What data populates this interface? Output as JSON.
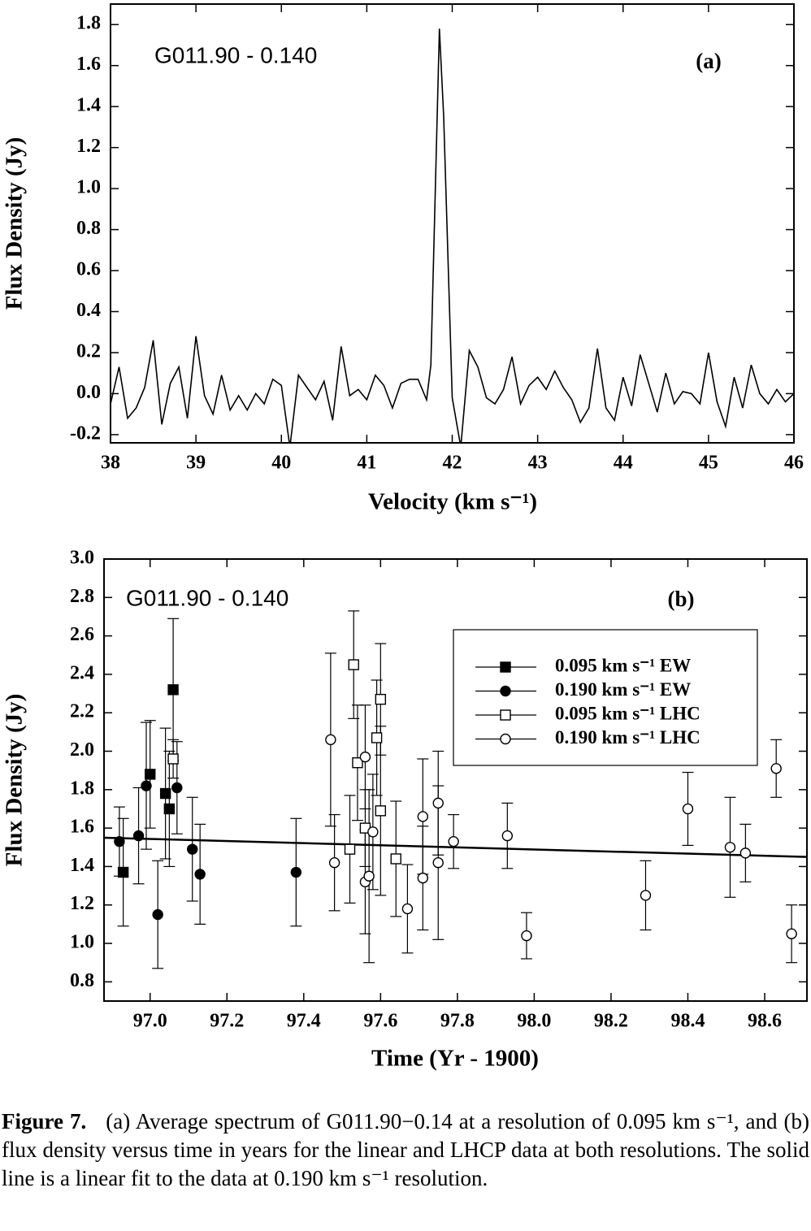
{
  "chart_data": [
    {
      "type": "line",
      "color": "#000000",
      "xlabel": "Velocity (km s⁻¹)",
      "ylabel": "Flux Density (Jy)",
      "annotations": [
        "G011.90 - 0.140",
        "(a)"
      ],
      "x": [
        38,
        38.1,
        38.2,
        38.3,
        38.4,
        38.5,
        38.6,
        38.7,
        38.8,
        38.9,
        39,
        39.1,
        39.2,
        39.3,
        39.4,
        39.5,
        39.6,
        39.7,
        39.8,
        39.9,
        40,
        40.1,
        40.2,
        40.3,
        40.4,
        40.5,
        40.6,
        40.7,
        40.8,
        40.9,
        41,
        41.1,
        41.2,
        41.3,
        41.4,
        41.5,
        41.6,
        41.7,
        41.75,
        41.85,
        41.9,
        42,
        42.1,
        42.2,
        42.3,
        42.4,
        42.5,
        42.6,
        42.7,
        42.8,
        42.9,
        43,
        43.1,
        43.2,
        43.3,
        43.4,
        43.5,
        43.6,
        43.7,
        43.8,
        43.9,
        44,
        44.1,
        44.2,
        44.3,
        44.4,
        44.5,
        44.6,
        44.7,
        44.8,
        44.9,
        45,
        45.1,
        45.2,
        45.3,
        45.4,
        45.5,
        45.6,
        45.7,
        45.8,
        45.9,
        46
      ],
      "values": [
        -0.05,
        0.13,
        -0.12,
        -0.07,
        0.03,
        0.26,
        -0.15,
        0.05,
        0.13,
        -0.12,
        0.28,
        -0.01,
        -0.1,
        0.09,
        -0.08,
        -0.01,
        -0.08,
        0.0,
        -0.05,
        0.07,
        0.04,
        -0.26,
        0.09,
        0.03,
        -0.03,
        0.06,
        -0.13,
        0.23,
        -0.01,
        0.02,
        -0.03,
        0.09,
        0.04,
        -0.07,
        0.05,
        0.07,
        0.07,
        -0.03,
        0.14,
        1.78,
        1.35,
        -0.02,
        -0.26,
        0.21,
        0.13,
        -0.02,
        -0.05,
        0.02,
        0.18,
        -0.05,
        0.04,
        0.08,
        0.02,
        0.11,
        0.03,
        -0.03,
        -0.14,
        -0.07,
        0.22,
        -0.07,
        -0.13,
        0.08,
        -0.06,
        0.19,
        0.05,
        -0.09,
        0.1,
        -0.05,
        0.01,
        0.0,
        -0.05,
        0.2,
        -0.04,
        -0.16,
        0.08,
        -0.07,
        0.14,
        0.0,
        -0.05,
        0.02,
        -0.04,
        0.0
      ],
      "xlim": [
        38,
        46
      ],
      "xticks": [
        38,
        39,
        40,
        41,
        42,
        43,
        44,
        45,
        46
      ],
      "ylim": [
        -0.24,
        1.9
      ],
      "yticks": [
        -0.2,
        {
          "value": 0,
          "label": "0.0"
        },
        0.2,
        0.4,
        0.6,
        0.8,
        {
          "value": 1,
          "label": "1.0"
        },
        1.2,
        1.4,
        1.6,
        1.8
      ]
    },
    {
      "type": "scatter",
      "xlabel": "Time (Yr - 1900)",
      "ylabel": "Flux Density (Jy)",
      "annotations": [
        "G011.90 - 0.140",
        "(b)"
      ],
      "series": [
        {
          "name": "0.095 km s⁻¹ EW",
          "color": "#000000",
          "marker": "square",
          "filled": true,
          "x": [
            96.93,
            97.0,
            97.04,
            97.05,
            97.06
          ],
          "values": [
            1.37,
            1.88,
            1.78,
            1.7,
            2.32
          ],
          "errors": [
            0.28,
            0.28,
            0.34,
            0.3,
            0.37
          ]
        },
        {
          "name": "0.190 km s⁻¹ EW",
          "color": "#000000",
          "marker": "circle",
          "filled": true,
          "x": [
            96.92,
            96.97,
            96.99,
            97.02,
            97.07,
            97.11,
            97.13,
            97.38
          ],
          "values": [
            1.53,
            1.56,
            1.82,
            1.15,
            1.81,
            1.49,
            1.36,
            1.37
          ],
          "errors": [
            0.18,
            0.25,
            0.33,
            0.28,
            0.24,
            0.27,
            0.26,
            0.28
          ]
        },
        {
          "name": "0.095 km s⁻¹ LHC",
          "color": "#000000",
          "marker": "square",
          "filled": false,
          "x": [
            97.06,
            97.52,
            97.53,
            97.54,
            97.56,
            97.59,
            97.6,
            97.6,
            97.64
          ],
          "values": [
            1.96,
            1.49,
            2.45,
            1.94,
            1.6,
            2.07,
            2.27,
            1.69,
            1.44
          ],
          "errors": [
            0.1,
            0.28,
            0.28,
            0.3,
            0.2,
            0.3,
            0.29,
            0.44,
            0.3
          ]
        },
        {
          "name": "0.190 km s⁻¹ LHC",
          "color": "#000000",
          "marker": "circle",
          "filled": false,
          "x": [
            97.47,
            97.48,
            97.56,
            97.56,
            97.57,
            97.58,
            97.67,
            97.71,
            97.71,
            97.75,
            97.75,
            97.79,
            97.93,
            97.98,
            98.29,
            98.4,
            98.51,
            98.55,
            98.63,
            98.67
          ],
          "values": [
            2.06,
            1.42,
            1.32,
            1.97,
            1.35,
            1.58,
            1.18,
            1.66,
            1.34,
            1.73,
            1.42,
            1.53,
            1.56,
            1.04,
            1.25,
            1.7,
            1.5,
            1.47,
            1.91,
            1.05
          ],
          "errors": [
            0.45,
            0.25,
            0.27,
            0.27,
            0.45,
            0.3,
            0.23,
            0.3,
            0.27,
            0.27,
            0.4,
            0.14,
            0.17,
            0.12,
            0.18,
            0.19,
            0.26,
            0.15,
            0.15,
            0.15
          ]
        }
      ],
      "fit": {
        "x": [
          96.88,
          98.71
        ],
        "values": [
          1.55,
          1.45
        ]
      },
      "xlim": [
        96.88,
        98.71
      ],
      "xticks": [
        {
          "value": 97,
          "label": "97.0"
        },
        97.2,
        97.4,
        97.6,
        97.8,
        {
          "value": 98,
          "label": "98.0"
        },
        98.2,
        98.4,
        98.6
      ],
      "ylim": [
        0.7,
        3.0
      ],
      "yticks": [
        0.8,
        {
          "value": 1,
          "label": "1.0"
        },
        1.2,
        1.4,
        1.6,
        1.8,
        {
          "value": 2,
          "label": "2.0"
        },
        2.2,
        2.4,
        2.6,
        2.8,
        {
          "value": 3,
          "label": "3.0"
        }
      ]
    }
  ],
  "caption": {
    "label": "Figure 7.",
    "text": "(a) Average spectrum of G011.90−0.14 at a resolution of 0.095 km s⁻¹, and (b) flux density versus time in years for the linear and LHCP data at both resolutions. The solid line is a linear fit to the data at 0.190 km s⁻¹ resolution."
  }
}
